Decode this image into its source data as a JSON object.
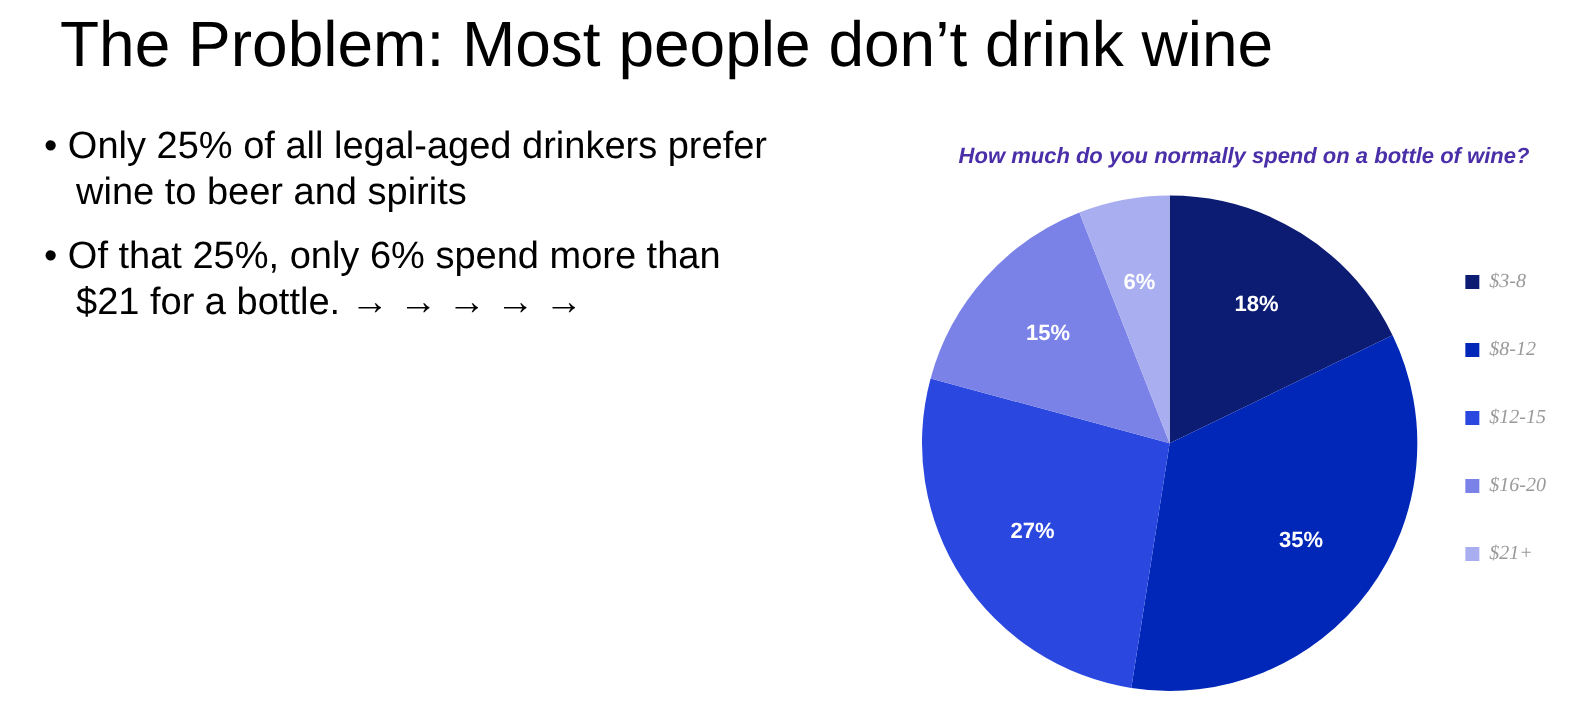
{
  "chart_data": {
    "type": "pie",
    "title": "The Problem: Most people don’t drink wine",
    "subtitle": "How much do you normally spend on a bottle of wine?",
    "annotations": [
      "• Only 25% of all legal-aged drinkers prefer wine to beer and spirits",
      "• Of that 25%, only 6% spend more than $21 for a bottle. → → → → →"
    ],
    "categories": [
      "$3-8",
      "$8-12",
      "$12-15",
      "$16-20",
      "$21+"
    ],
    "values": [
      18,
      35,
      27,
      15,
      6
    ],
    "colors": [
      "#0d1c73",
      "#0027b8",
      "#2a47e0",
      "#7a82e8",
      "#a9aef0"
    ],
    "value_labels": [
      "18%",
      "35%",
      "27%",
      "15%",
      "6%"
    ],
    "legend": "right"
  }
}
